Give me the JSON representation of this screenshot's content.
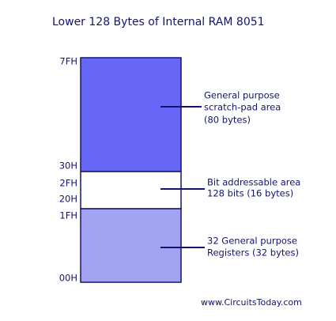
{
  "title": "Lower 128 Bytes of Internal RAM 8051",
  "addresses": [
    "7FH",
    "30H",
    "2FH",
    "20H",
    "1FH",
    "00H"
  ],
  "regions": [
    {
      "lines": [
        "General purpose",
        "scratch-pad area",
        "(80 bytes)"
      ]
    },
    {
      "lines": [
        "Bit addressable area",
        "128 bits (16 bytes)"
      ]
    },
    {
      "lines": [
        "32 General purpose",
        "Registers (32 bytes)"
      ]
    }
  ],
  "footer": "www.CircuitsToday.com"
}
